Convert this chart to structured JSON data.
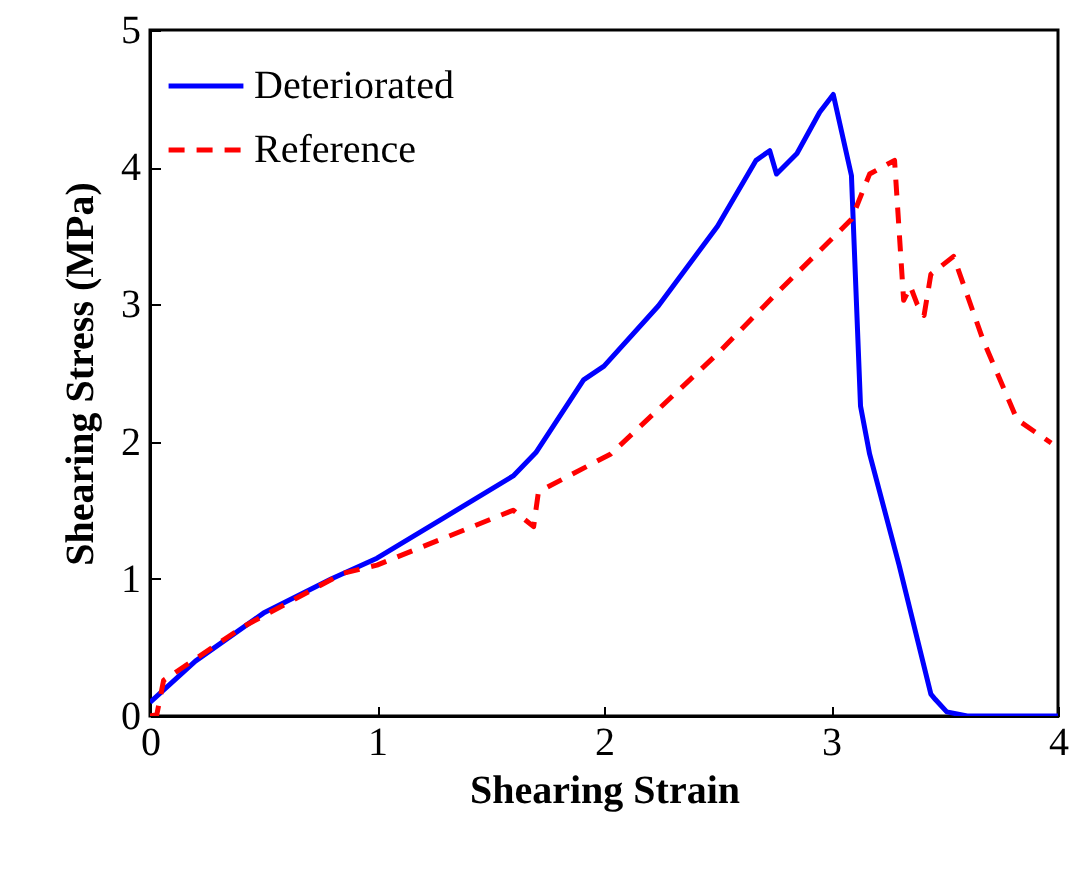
{
  "chart_data": {
    "type": "line",
    "xlabel": "Shearing Strain",
    "ylabel": "Shearing Stress (MPa)",
    "xlim": [
      0,
      4
    ],
    "ylim": [
      0,
      5
    ],
    "xticks": [
      0,
      1,
      2,
      3,
      4
    ],
    "yticks": [
      0,
      1,
      2,
      3,
      4,
      5
    ],
    "grid": false,
    "legend": "top left",
    "marker": "none",
    "series": [
      {
        "name": "Deteriorated",
        "color": "#0000ff",
        "line_style": "solid",
        "x": [
          0,
          0.2,
          0.5,
          0.8,
          1.0,
          1.3,
          1.6,
          1.7,
          1.91,
          2.0,
          2.24,
          2.5,
          2.67,
          2.73,
          2.76,
          2.85,
          2.95,
          3.01,
          3.09,
          3.13,
          3.17,
          3.3,
          3.44,
          3.46,
          3.51,
          3.6,
          4.0
        ],
        "values": [
          0.1,
          0.4,
          0.75,
          1.0,
          1.15,
          1.45,
          1.75,
          1.92,
          2.45,
          2.55,
          2.99,
          3.57,
          4.05,
          4.12,
          3.95,
          4.1,
          4.4,
          4.53,
          3.94,
          2.26,
          1.91,
          1.1,
          0.16,
          0.12,
          0.03,
          0,
          0
        ]
      },
      {
        "name": "Reference",
        "color": "#ff0000",
        "line_style": "dashed",
        "x": [
          0,
          0.03,
          0.06,
          0.41,
          0.85,
          1.0,
          1.3,
          1.6,
          1.69,
          1.71,
          1.73,
          2.03,
          2.5,
          2.76,
          3.09,
          3.17,
          3.28,
          3.32,
          3.35,
          3.38,
          3.41,
          3.44,
          3.54,
          3.67,
          3.82,
          3.97
        ],
        "values": [
          0,
          0.01,
          0.26,
          0.65,
          1.04,
          1.1,
          1.3,
          1.5,
          1.38,
          1.62,
          1.65,
          1.91,
          2.64,
          3.08,
          3.62,
          3.95,
          4.05,
          3.03,
          3.13,
          3.0,
          2.92,
          3.22,
          3.35,
          2.74,
          2.16,
          1.99
        ]
      }
    ]
  }
}
